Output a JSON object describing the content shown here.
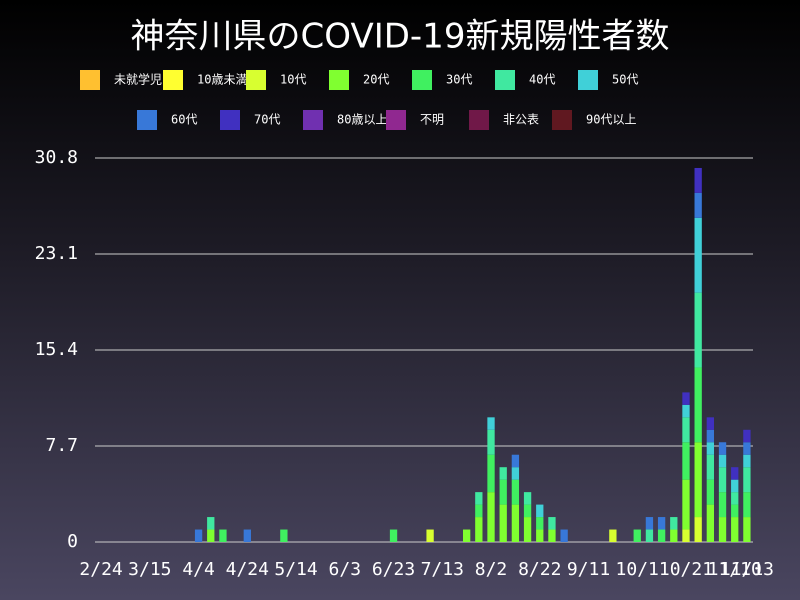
{
  "chart_data": {
    "type": "stacked_bar",
    "title": "神奈川県のCOVID-19新規陽性者数",
    "categories": [
      "2/24",
      null,
      null,
      null,
      "3/15",
      null,
      null,
      null,
      "4/4",
      null,
      null,
      null,
      "4/24",
      null,
      null,
      null,
      "5/14",
      null,
      null,
      null,
      "6/3",
      null,
      null,
      null,
      "6/23",
      null,
      null,
      null,
      "7/13",
      null,
      null,
      null,
      "8/2",
      null,
      null,
      null,
      "8/22",
      null,
      null,
      null,
      "9/11",
      null,
      null,
      null,
      "10/1",
      null,
      null,
      null,
      "10/21",
      null,
      null,
      null,
      "11/10",
      "11/13"
    ],
    "ylim": [
      0,
      30.8
    ],
    "yticks": [
      0,
      7.7,
      15.4,
      23.1,
      30.8
    ],
    "grid": true,
    "series": [
      {
        "name": "未就学児",
        "color": "#ffc030",
        "values": [
          0,
          0,
          0,
          0,
          0,
          0,
          0,
          0,
          0,
          0,
          0,
          0,
          0,
          0,
          0,
          0,
          0,
          0,
          0,
          0,
          0,
          0,
          0,
          0,
          0,
          0,
          0,
          0,
          0,
          0,
          0,
          0,
          0,
          0,
          0,
          0,
          0,
          0,
          0,
          0,
          0,
          0,
          0,
          0,
          0,
          0,
          0,
          0,
          0,
          0,
          0,
          0,
          0,
          0
        ]
      },
      {
        "name": "10歳未満",
        "color": "#ffff30",
        "values": [
          0,
          0,
          0,
          0,
          0,
          0,
          0,
          0,
          0,
          0,
          0,
          0,
          0,
          0,
          0,
          0,
          0,
          0,
          0,
          0,
          0,
          0,
          0,
          0,
          0,
          0,
          0,
          0,
          0,
          0,
          0,
          0,
          0,
          0,
          0,
          0,
          0,
          0,
          0,
          0,
          0,
          0,
          0,
          0,
          0,
          0,
          0,
          0,
          0,
          0,
          0,
          0,
          0,
          0
        ]
      },
      {
        "name": "10代",
        "color": "#d8ff30",
        "values": [
          0,
          0,
          0,
          0,
          0,
          0,
          0,
          0,
          0,
          0,
          0,
          0,
          0,
          0,
          0,
          0,
          0,
          0,
          0,
          0,
          0,
          0,
          0,
          0,
          0,
          0,
          0,
          1,
          0,
          0,
          0,
          0,
          0,
          0,
          0,
          0,
          0,
          0,
          0,
          0,
          0,
          0,
          1,
          0,
          0,
          0,
          0,
          0,
          1,
          2,
          0,
          0,
          0,
          0
        ]
      },
      {
        "name": "20代",
        "color": "#80ff30",
        "values": [
          0,
          0,
          0,
          0,
          0,
          0,
          0,
          0,
          0,
          1,
          0,
          0,
          0,
          0,
          0,
          0,
          0,
          0,
          0,
          0,
          0,
          0,
          0,
          0,
          0,
          0,
          0,
          0,
          0,
          0,
          1,
          2,
          4,
          3,
          3,
          2,
          1,
          1,
          0,
          0,
          0,
          0,
          0,
          0,
          0,
          0,
          0,
          1,
          4,
          6,
          3,
          2,
          2,
          2
        ]
      },
      {
        "name": "30代",
        "color": "#40f060",
        "values": [
          0,
          0,
          0,
          0,
          0,
          0,
          0,
          0,
          0,
          0,
          1,
          0,
          0,
          0,
          0,
          1,
          0,
          0,
          0,
          0,
          0,
          0,
          0,
          0,
          1,
          0,
          0,
          0,
          0,
          0,
          0,
          1,
          3,
          2,
          2,
          1,
          1,
          0,
          0,
          0,
          0,
          0,
          0,
          0,
          1,
          0,
          1,
          0,
          3,
          6,
          2,
          2,
          1,
          2
        ]
      },
      {
        "name": "40代",
        "color": "#40e8a0",
        "values": [
          0,
          0,
          0,
          0,
          0,
          0,
          0,
          0,
          0,
          1,
          0,
          0,
          0,
          0,
          0,
          0,
          0,
          0,
          0,
          0,
          0,
          0,
          0,
          0,
          0,
          0,
          0,
          0,
          0,
          0,
          0,
          1,
          2,
          1,
          0,
          1,
          0,
          1,
          0,
          0,
          0,
          0,
          0,
          0,
          0,
          1,
          0,
          1,
          2,
          6,
          2,
          2,
          1,
          2
        ]
      },
      {
        "name": "50代",
        "color": "#40d0d8",
        "values": [
          0,
          0,
          0,
          0,
          0,
          0,
          0,
          0,
          0,
          0,
          0,
          0,
          0,
          0,
          0,
          0,
          0,
          0,
          0,
          0,
          0,
          0,
          0,
          0,
          0,
          0,
          0,
          0,
          0,
          0,
          0,
          0,
          1,
          0,
          1,
          0,
          1,
          0,
          0,
          0,
          0,
          0,
          0,
          0,
          0,
          0,
          0,
          0,
          1,
          6,
          1,
          1,
          1,
          1
        ]
      },
      {
        "name": "60代",
        "color": "#3878d8",
        "values": [
          0,
          0,
          0,
          0,
          0,
          0,
          0,
          0,
          1,
          0,
          0,
          0,
          1,
          0,
          0,
          0,
          0,
          0,
          0,
          0,
          0,
          0,
          0,
          0,
          0,
          0,
          0,
          0,
          0,
          0,
          0,
          0,
          0,
          0,
          1,
          0,
          0,
          0,
          1,
          0,
          0,
          0,
          0,
          0,
          0,
          1,
          1,
          0,
          0,
          2,
          1,
          1,
          0,
          1
        ]
      },
      {
        "name": "70代",
        "color": "#4030c0",
        "values": [
          0,
          0,
          0,
          0,
          0,
          0,
          0,
          0,
          0,
          0,
          0,
          0,
          0,
          0,
          0,
          0,
          0,
          0,
          0,
          0,
          0,
          0,
          0,
          0,
          0,
          0,
          0,
          0,
          0,
          0,
          0,
          0,
          0,
          0,
          0,
          0,
          0,
          0,
          0,
          0,
          0,
          0,
          0,
          0,
          0,
          0,
          0,
          0,
          1,
          2,
          1,
          0,
          1,
          1
        ]
      },
      {
        "name": "80歳以上",
        "color": "#7030b0",
        "values": [
          0,
          0,
          0,
          0,
          0,
          0,
          0,
          0,
          0,
          0,
          0,
          0,
          0,
          0,
          0,
          0,
          0,
          0,
          0,
          0,
          0,
          0,
          0,
          0,
          0,
          0,
          0,
          0,
          0,
          0,
          0,
          0,
          0,
          0,
          0,
          0,
          0,
          0,
          0,
          0,
          0,
          0,
          0,
          0,
          0,
          0,
          0,
          0,
          0,
          0,
          0,
          0,
          0,
          0
        ]
      },
      {
        "name": "不明",
        "color": "#902890",
        "values": [
          0,
          0,
          0,
          0,
          0,
          0,
          0,
          0,
          0,
          0,
          0,
          0,
          0,
          0,
          0,
          0,
          0,
          0,
          0,
          0,
          0,
          0,
          0,
          0,
          0,
          0,
          0,
          0,
          0,
          0,
          0,
          0,
          0,
          0,
          0,
          0,
          0,
          0,
          0,
          0,
          0,
          0,
          0,
          0,
          0,
          0,
          0,
          0,
          0,
          0,
          0,
          0,
          0,
          0
        ]
      },
      {
        "name": "非公表",
        "color": "#701848",
        "values": [
          0,
          0,
          0,
          0,
          0,
          0,
          0,
          0,
          0,
          0,
          0,
          0,
          0,
          0,
          0,
          0,
          0,
          0,
          0,
          0,
          0,
          0,
          0,
          0,
          0,
          0,
          0,
          0,
          0,
          0,
          0,
          0,
          0,
          0,
          0,
          0,
          0,
          0,
          0,
          0,
          0,
          0,
          0,
          0,
          0,
          0,
          0,
          0,
          0,
          0,
          0,
          0,
          0,
          0
        ]
      },
      {
        "name": "90代以上",
        "color": "#601820",
        "values": [
          0,
          0,
          0,
          0,
          0,
          0,
          0,
          0,
          0,
          0,
          0,
          0,
          0,
          0,
          0,
          0,
          0,
          0,
          0,
          0,
          0,
          0,
          0,
          0,
          0,
          0,
          0,
          0,
          0,
          0,
          0,
          0,
          0,
          0,
          0,
          0,
          0,
          0,
          0,
          0,
          0,
          0,
          0,
          0,
          0,
          0,
          0,
          0,
          0,
          0,
          0,
          0,
          0,
          0
        ]
      }
    ]
  }
}
